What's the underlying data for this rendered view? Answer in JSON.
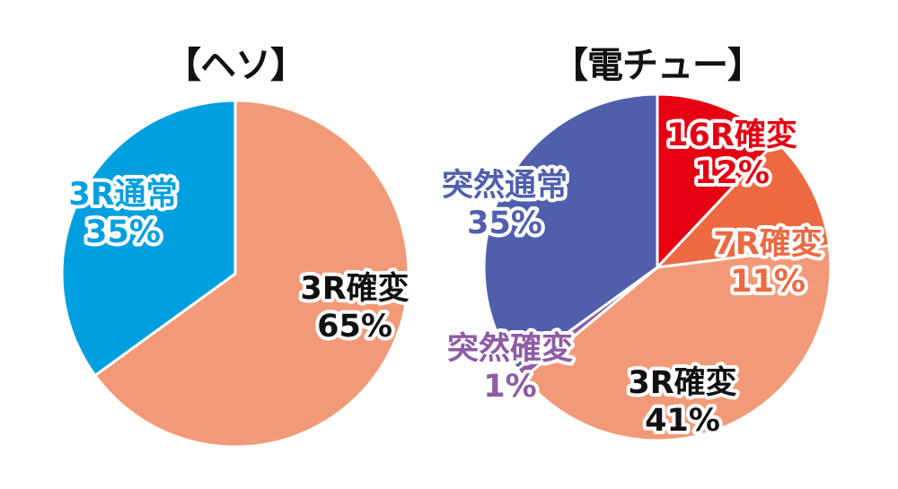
{
  "chart_data": [
    {
      "type": "pie",
      "title": "【ヘソ】",
      "slices": [
        {
          "label": "3R確変",
          "value": 65,
          "value_label": "65%",
          "color": "#f29a77",
          "label_color": "#111111"
        },
        {
          "label": "3R通常",
          "value": 35,
          "value_label": "35%",
          "color": "#00a0e0",
          "label_color": "#00a0e0"
        }
      ]
    },
    {
      "type": "pie",
      "title": "【電チュー】",
      "slices": [
        {
          "label": "16R確変",
          "value": 12,
          "value_label": "12%",
          "color": "#e60012",
          "label_color": "#e60012"
        },
        {
          "label": "7R確変",
          "value": 11,
          "value_label": "11%",
          "color": "#ec6941",
          "label_color": "#ec6941"
        },
        {
          "label": "3R確変",
          "value": 41,
          "value_label": "41%",
          "color": "#f29a77",
          "label_color": "#111111"
        },
        {
          "label": "突然確変",
          "value": 1,
          "value_label": "1%",
          "color": "#8e5ba6",
          "label_color": "#8e5ba6"
        },
        {
          "label": "突然通常",
          "value": 35,
          "value_label": "35%",
          "color": "#4f5fac",
          "label_color": "#4f5fac"
        }
      ]
    }
  ]
}
